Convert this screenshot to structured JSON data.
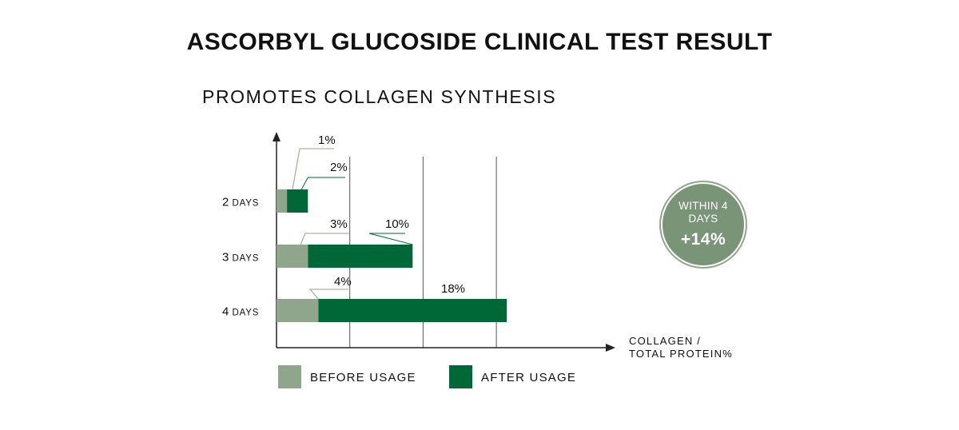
{
  "title": "ASCORBYL GLUCOSIDE CLINICAL TEST RESULT",
  "subtitle": "PROMOTES COLLAGEN SYNTHESIS",
  "badge": {
    "text": "WITHIN 4 DAYS",
    "value": "+14%"
  },
  "colors": {
    "before": "#8fa68c",
    "after": "#006837",
    "badge": "#7a9478",
    "axis": "#222222",
    "grid": "#555555"
  },
  "chart_data": {
    "type": "bar",
    "orientation": "horizontal",
    "categories": [
      {
        "num": "2",
        "unit": "DAYS"
      },
      {
        "num": "3",
        "unit": "DAYS"
      },
      {
        "num": "4",
        "unit": "DAYS"
      }
    ],
    "series": [
      {
        "name": "BEFORE USAGE",
        "values": [
          1,
          3,
          4
        ],
        "labels": [
          "1%",
          "3%",
          "4%"
        ]
      },
      {
        "name": "AFTER USAGE",
        "values": [
          2,
          10,
          18
        ],
        "labels": [
          "2%",
          "10%",
          "18%"
        ]
      }
    ],
    "stacked": true,
    "xlabel": [
      "COLLAGEN /",
      "TOTAL PROTEIN%"
    ],
    "xlim": [
      0,
      30
    ],
    "gridlines_at": [
      7,
      14,
      21
    ],
    "legend": {
      "position": "bottom-left"
    }
  }
}
